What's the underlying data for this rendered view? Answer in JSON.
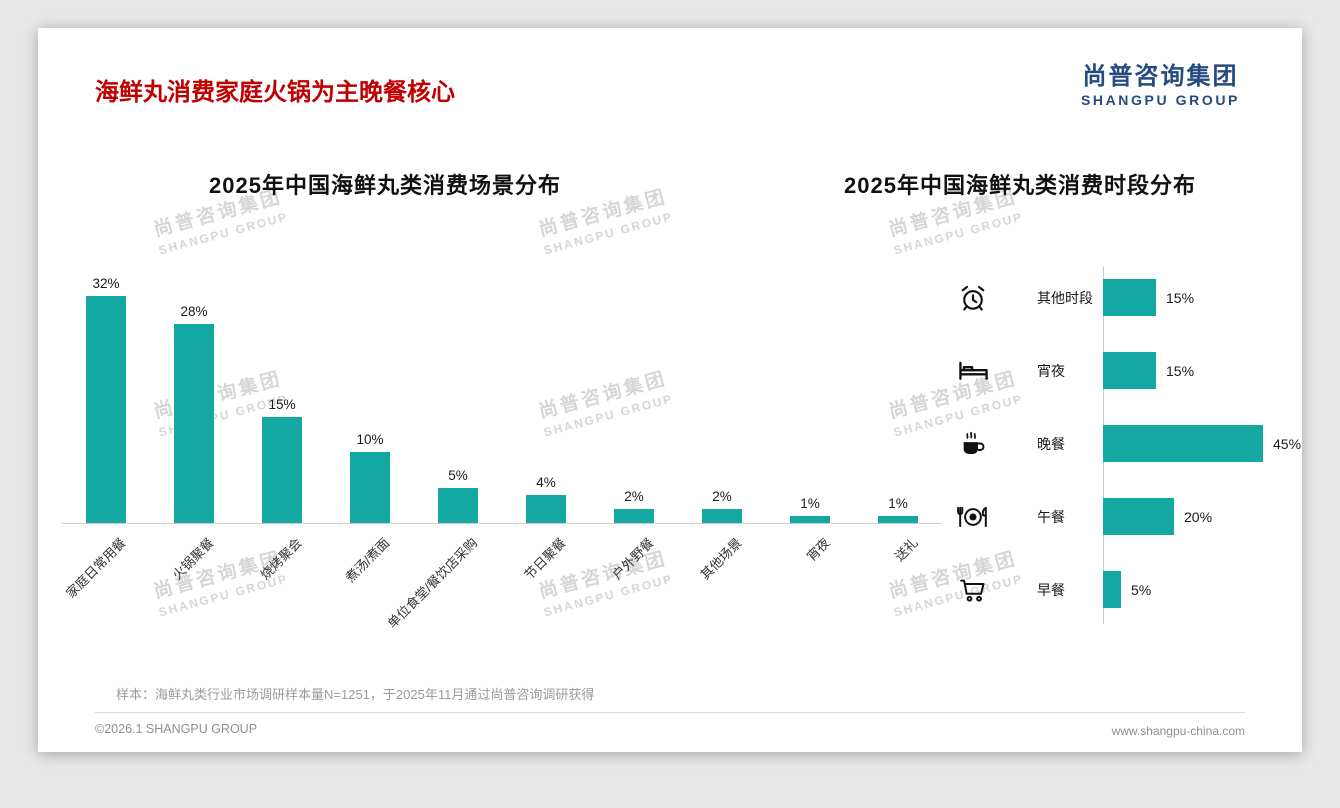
{
  "page": {
    "title": "海鲜丸消费家庭火锅为主晚餐核心",
    "logo": {
      "cn": "尚普咨询集团",
      "en": "SHANGPU GROUP"
    },
    "watermark": {
      "cn": "尚普咨询集团",
      "en": "SHANGPU GROUP"
    },
    "footer": {
      "note": "样本：海鲜丸类行业市场调研样本量N=1251，于2025年11月通过尚普咨询调研获得",
      "copyright": "©2026.1 SHANGPU GROUP",
      "website": "www.shangpu-china.com"
    }
  },
  "colors": {
    "bar_teal": "#14a8a2",
    "title_red": "#c00000",
    "logo_blue": "#274b7f"
  },
  "chart_data": [
    {
      "type": "bar",
      "orientation": "vertical",
      "title": "2025年中国海鲜丸类消费场景分布",
      "categories": [
        "家庭日常用餐",
        "火锅聚餐",
        "烧烤聚会",
        "煮汤/煮面",
        "单位食堂/餐饮店采购",
        "节日聚餐",
        "户外野餐",
        "其他场景",
        "宵夜",
        "送礼"
      ],
      "values": [
        32,
        28,
        15,
        10,
        5,
        4,
        2,
        2,
        1,
        1
      ],
      "unit": "%",
      "ylim": [
        0,
        32
      ],
      "data_labels": true,
      "grid": false,
      "legend": false
    },
    {
      "type": "bar",
      "orientation": "horizontal",
      "title": "2025年中国海鲜丸类消费时段分布",
      "categories": [
        "其他时段",
        "宵夜",
        "晚餐",
        "午餐",
        "早餐"
      ],
      "values": [
        15,
        15,
        45,
        20,
        5
      ],
      "icons": [
        "alarm-clock-icon",
        "bed-icon",
        "coffee-cup-icon",
        "plate-cutlery-icon",
        "shopping-cart-icon"
      ],
      "unit": "%",
      "xlim": [
        0,
        45
      ],
      "data_labels": true,
      "grid": false,
      "legend": false
    }
  ]
}
